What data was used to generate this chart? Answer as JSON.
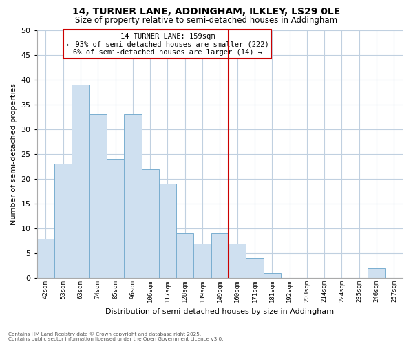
{
  "title": "14, TURNER LANE, ADDINGHAM, ILKLEY, LS29 0LE",
  "subtitle": "Size of property relative to semi-detached houses in Addingham",
  "xlabel": "Distribution of semi-detached houses by size in Addingham",
  "ylabel": "Number of semi-detached properties",
  "bin_labels": [
    "42sqm",
    "53sqm",
    "63sqm",
    "74sqm",
    "85sqm",
    "96sqm",
    "106sqm",
    "117sqm",
    "128sqm",
    "139sqm",
    "149sqm",
    "160sqm",
    "171sqm",
    "181sqm",
    "192sqm",
    "203sqm",
    "214sqm",
    "224sqm",
    "235sqm",
    "246sqm",
    "257sqm"
  ],
  "bar_values": [
    8,
    23,
    39,
    33,
    24,
    33,
    22,
    19,
    9,
    7,
    9,
    7,
    4,
    1,
    0,
    0,
    0,
    0,
    0,
    2,
    0
  ],
  "bar_color": "#cfe0f0",
  "bar_edge_color": "#7aaed0",
  "highlight_line_color": "#cc0000",
  "highlight_bin_index": 11,
  "ylim": [
    0,
    50
  ],
  "yticks": [
    0,
    5,
    10,
    15,
    20,
    25,
    30,
    35,
    40,
    45,
    50
  ],
  "grid_color": "#c0d0e0",
  "bg_color": "#ffffff",
  "annotation_title": "14 TURNER LANE: 159sqm",
  "annotation_line1": "← 93% of semi-detached houses are smaller (222)",
  "annotation_line2": "6% of semi-detached houses are larger (14) →",
  "annotation_box_color": "#ffffff",
  "annotation_border_color": "#cc0000",
  "footnote1": "Contains HM Land Registry data © Crown copyright and database right 2025.",
  "footnote2": "Contains public sector information licensed under the Open Government Licence v3.0."
}
